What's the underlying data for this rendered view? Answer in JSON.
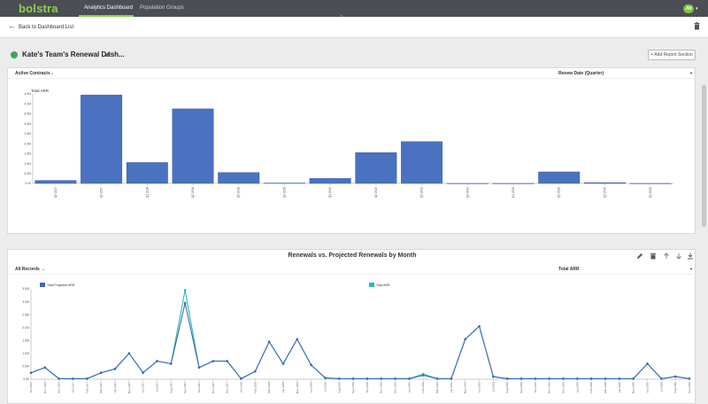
{
  "app": {
    "logo": "bolstra",
    "tabs": [
      "Analytics Dashboard",
      "Population Groups"
    ],
    "active_tab": "Analytics Dashboard",
    "user_initials": "JW"
  },
  "subbar": {
    "back_label": "Back to Dashboard List"
  },
  "dashboard": {
    "title": "Kate's Team's Renewal Dash...",
    "add_section_label": "+ Add Report Section"
  },
  "colors": {
    "bar": "#4a72c0",
    "line_projected": "#3f68b5",
    "line_total": "#2bbab0",
    "nav": "#4b4e53",
    "brand": "#8fd14f"
  },
  "card1": {
    "left_dropdown": "Active Contracts",
    "right_dropdown": "Renew Date (Quarter)"
  },
  "card2": {
    "title": "Renewals vs. Projected Renewals by Month",
    "left_dropdown": "All Records",
    "right_dropdown": "Total ARR"
  },
  "chart_data": [
    {
      "type": "bar",
      "ylabel": "Total ARR",
      "yticks": [
        "0.00",
        "0.5M",
        "1.0M",
        "1.5M",
        "2.0M",
        "2.5M",
        "3.0M",
        "3.5M",
        "4.0M",
        "4.5M"
      ],
      "ylim": [
        0,
        4.5
      ],
      "categories": [
        "Q3 2017",
        "Q4 2017",
        "Q1 2018",
        "Q2 2018",
        "Q3 2018",
        "Q4 2018",
        "Q1 2019",
        "Q2 2019",
        "Q3 2019",
        "Q4 2019",
        "Q1 2020",
        "Q2 2020",
        "Q3 2020",
        "Q4 2020"
      ],
      "values": [
        0.15,
        4.45,
        1.05,
        3.75,
        0.55,
        0.02,
        0.25,
        1.55,
        2.1,
        0,
        0,
        0.58,
        0.04,
        0
      ]
    },
    {
      "type": "line",
      "yticks": [
        "0.00",
        "0.5M",
        "1.0M",
        "1.5M",
        "2.0M",
        "2.5M",
        "3.0M",
        "3.5M"
      ],
      "ylim": [
        0,
        3.5
      ],
      "legend": [
        "Total Projected ARR",
        "Total ARR"
      ],
      "legend_position": "top",
      "categories": [
        "Oct 2016",
        "Nov 2016",
        "Dec 2016",
        "Jan 2017",
        "Feb 2017",
        "Mar 2017",
        "Apr 2017",
        "May 2017",
        "Jun 2017",
        "Jul 2017",
        "Aug 2017",
        "Sep 2017",
        "Oct 2017",
        "Nov 2017",
        "Dec 2017",
        "Jan 2018",
        "Feb 2018",
        "Mar 2018",
        "Apr 2018",
        "May 2018",
        "Jun 2018",
        "Jul 2018",
        "Aug 2018",
        "Sep 2018",
        "Oct 2018",
        "Nov 2018",
        "Dec 2018",
        "Jan 2019",
        "Feb 2019",
        "Mar 2019",
        "Apr 2019",
        "May 2019",
        "Jun 2019",
        "Jul 2019",
        "Aug 2019",
        "Sep 2019",
        "Oct 2019",
        "Nov 2019",
        "Dec 2019",
        "Jan 2020",
        "Feb 2020",
        "Mar 2020",
        "Apr 2020",
        "May 2020",
        "Jun 2020",
        "Jul 2020",
        "Aug 2020",
        "Sep 2020"
      ],
      "series": [
        {
          "name": "Total Projected ARR",
          "values": [
            0.25,
            0.45,
            0.02,
            0.02,
            0.02,
            0.25,
            0.4,
            1.0,
            0.25,
            0.7,
            0.6,
            2.95,
            0.45,
            0.7,
            0.7,
            0.02,
            0.3,
            1.45,
            0.6,
            1.55,
            0.55,
            0.05,
            0.02,
            0.02,
            0.02,
            0.02,
            0.02,
            0.02,
            0.15,
            0.02,
            0.02,
            1.55,
            2.05,
            0.1,
            0.02,
            0.02,
            0.02,
            0.02,
            0.02,
            0.02,
            0.02,
            0.02,
            0.02,
            0.02,
            0.6,
            0.02,
            0.1,
            0.02
          ]
        },
        {
          "name": "Total ARR",
          "values": [
            0.25,
            0.45,
            0.02,
            0.02,
            0.02,
            0.25,
            0.4,
            1.0,
            0.25,
            0.7,
            0.6,
            3.45,
            0.45,
            0.7,
            0.7,
            0.02,
            0.3,
            1.45,
            0.6,
            1.55,
            0.55,
            0.05,
            0.02,
            0.02,
            0.02,
            0.02,
            0.02,
            0.02,
            0.2,
            0.02,
            0.02,
            1.55,
            2.05,
            0.1,
            0.02,
            0.02,
            0.02,
            0.02,
            0.02,
            0.02,
            0.02,
            0.02,
            0.02,
            0.02,
            0.6,
            0.02,
            0.1,
            0.02
          ]
        }
      ]
    }
  ]
}
